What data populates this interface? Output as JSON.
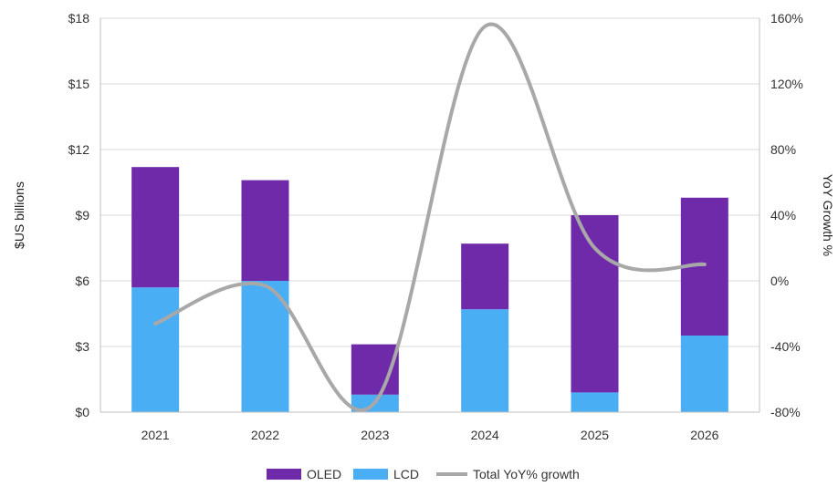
{
  "chart_data": {
    "type": "bar",
    "stacked": true,
    "categories": [
      "2021",
      "2022",
      "2023",
      "2024",
      "2025",
      "2026"
    ],
    "series": [
      {
        "name": "LCD",
        "values": [
          5.7,
          6.0,
          0.8,
          4.7,
          0.9,
          3.5
        ],
        "color": "#4aaef5"
      },
      {
        "name": "OLED",
        "values": [
          5.5,
          4.6,
          2.3,
          3.0,
          8.1,
          6.3
        ],
        "color": "#6e2aa8"
      }
    ],
    "line_series": {
      "name": "Total YoY% growth",
      "values": [
        -26,
        -3,
        -74,
        155,
        20,
        10
      ],
      "axis": "right",
      "color": "#a8a8a8"
    },
    "ylabel": "$US billions",
    "y2label": "YoY Growth %",
    "ylim": [
      0,
      18
    ],
    "y2lim": [
      -80,
      160
    ],
    "yticks": [
      "$0",
      "$3",
      "$6",
      "$9",
      "$12",
      "$15",
      "$18"
    ],
    "y2ticks": [
      "-80%",
      "-40%",
      "0%",
      "40%",
      "80%",
      "120%",
      "160%"
    ],
    "grid": true,
    "legend": "bottom",
    "legend_items": [
      "OLED",
      "LCD",
      "Total YoY% growth"
    ]
  }
}
